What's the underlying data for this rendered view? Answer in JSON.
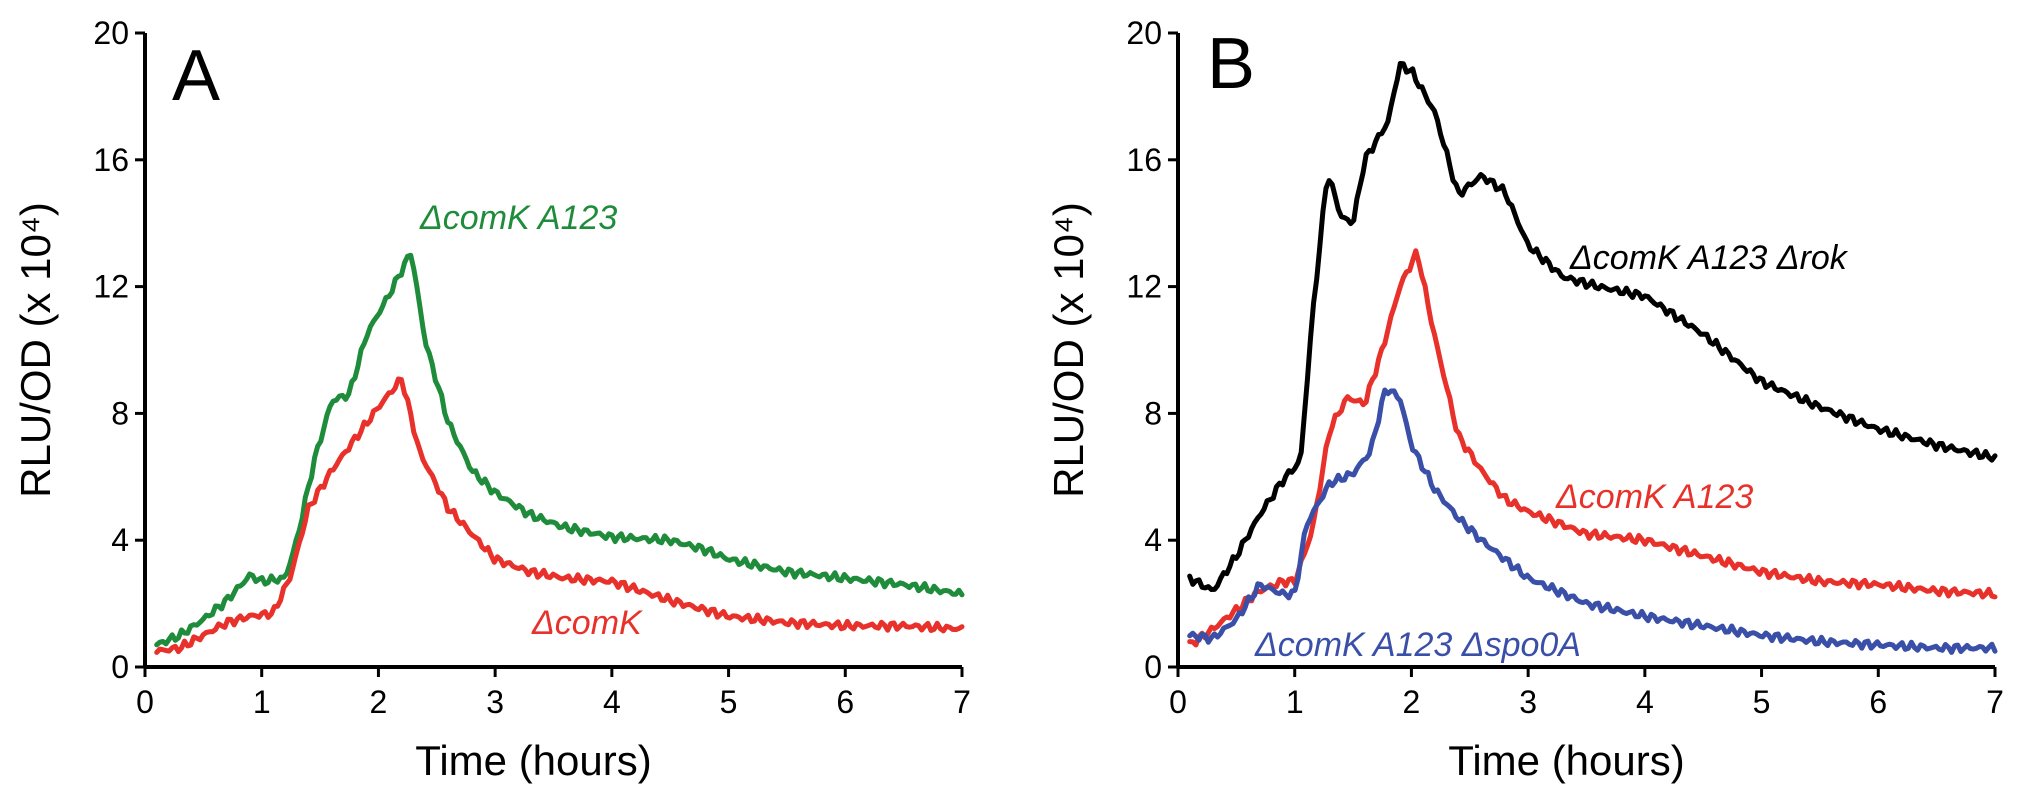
{
  "chart_data": [
    {
      "type": "line",
      "panel_label": "A",
      "xlabel": "Time (hours)",
      "ylabel": "RLU/OD (x 10⁴)",
      "xlim": [
        0,
        7
      ],
      "ylim": [
        0,
        20
      ],
      "xticks": [
        "0",
        "1",
        "2",
        "3",
        "4",
        "5",
        "6",
        "7"
      ],
      "yticks": [
        "0",
        "4",
        "8",
        "12",
        "16",
        "20"
      ],
      "grid": false,
      "legend": "inline",
      "series": [
        {
          "name": "ΔcomK A123",
          "color": "#1e8c3a",
          "x": [
            0.1,
            0.3,
            0.5,
            0.7,
            0.9,
            1.0,
            1.2,
            1.3,
            1.45,
            1.6,
            1.75,
            1.9,
            2.1,
            2.28,
            2.4,
            2.6,
            2.8,
            3.0,
            3.3,
            3.6,
            4.0,
            4.5,
            4.8,
            5.0,
            5.5,
            6.0,
            6.5,
            7.0
          ],
          "values": [
            0.7,
            1.0,
            1.5,
            2.1,
            2.9,
            2.7,
            2.8,
            4.0,
            6.5,
            8.4,
            8.6,
            10.5,
            11.8,
            13.1,
            10.3,
            7.7,
            6.2,
            5.5,
            4.8,
            4.4,
            4.1,
            4.0,
            3.7,
            3.4,
            3.0,
            2.8,
            2.6,
            2.3
          ]
        },
        {
          "name": "ΔcomK",
          "color": "#e8312a",
          "x": [
            0.1,
            0.3,
            0.5,
            0.7,
            0.9,
            1.1,
            1.25,
            1.4,
            1.6,
            1.8,
            2.0,
            2.2,
            2.35,
            2.6,
            2.8,
            3.0,
            3.3,
            3.6,
            4.0,
            4.5,
            5.0,
            5.5,
            6.0,
            6.5,
            7.0
          ],
          "values": [
            0.5,
            0.6,
            1.0,
            1.4,
            1.6,
            1.7,
            2.9,
            5.0,
            6.2,
            7.2,
            8.2,
            9.1,
            6.8,
            5.0,
            4.2,
            3.4,
            3.0,
            2.8,
            2.7,
            2.1,
            1.6,
            1.4,
            1.3,
            1.3,
            1.2
          ]
        }
      ]
    },
    {
      "type": "line",
      "panel_label": "B",
      "xlabel": "Time (hours)",
      "ylabel": "RLU/OD (x 10⁴)",
      "xlim": [
        0,
        7
      ],
      "ylim": [
        0,
        20
      ],
      "xticks": [
        "0",
        "1",
        "2",
        "3",
        "4",
        "5",
        "6",
        "7"
      ],
      "yticks": [
        "0",
        "4",
        "8",
        "12",
        "16",
        "20"
      ],
      "grid": false,
      "legend": "inline",
      "series": [
        {
          "name": "ΔcomK A123 Δrok",
          "color": "#000000",
          "x": [
            0.1,
            0.3,
            0.5,
            0.7,
            0.9,
            1.05,
            1.15,
            1.28,
            1.4,
            1.5,
            1.6,
            1.8,
            1.9,
            2.0,
            2.2,
            2.4,
            2.6,
            2.8,
            3.0,
            3.3,
            3.6,
            4.0,
            4.5,
            5.0,
            5.5,
            6.0,
            6.5,
            7.0
          ],
          "values": [
            2.8,
            2.4,
            3.5,
            4.8,
            5.9,
            6.5,
            11.0,
            15.6,
            14.2,
            14.0,
            16.0,
            17.2,
            19.0,
            18.8,
            17.5,
            14.9,
            15.5,
            15.0,
            13.3,
            12.3,
            12.0,
            11.7,
            10.5,
            9.0,
            8.2,
            7.5,
            7.0,
            6.6
          ]
        },
        {
          "name": "ΔcomK A123",
          "color": "#e8312a",
          "x": [
            0.1,
            0.3,
            0.5,
            0.7,
            0.9,
            1.0,
            1.15,
            1.3,
            1.45,
            1.6,
            1.75,
            1.9,
            2.05,
            2.2,
            2.4,
            2.6,
            2.8,
            3.0,
            3.5,
            4.0,
            4.5,
            5.0,
            5.5,
            6.0,
            6.5,
            7.0
          ],
          "values": [
            0.7,
            1.2,
            1.8,
            2.4,
            2.7,
            2.7,
            4.3,
            7.5,
            8.5,
            8.3,
            10.0,
            12.0,
            13.1,
            10.4,
            7.3,
            6.2,
            5.3,
            4.9,
            4.2,
            4.0,
            3.5,
            3.0,
            2.7,
            2.6,
            2.4,
            2.3
          ]
        },
        {
          "name": "ΔcomK A123 Δspo0A",
          "color": "#3a4fa8",
          "x": [
            0.1,
            0.3,
            0.5,
            0.7,
            0.9,
            1.0,
            1.1,
            1.3,
            1.5,
            1.65,
            1.78,
            1.9,
            2.0,
            2.2,
            2.4,
            2.6,
            2.8,
            3.0,
            3.5,
            4.0,
            4.5,
            5.0,
            5.5,
            6.0,
            6.5,
            7.0
          ],
          "values": [
            1.0,
            0.9,
            1.5,
            2.6,
            2.3,
            2.3,
            4.5,
            5.8,
            6.1,
            6.8,
            8.8,
            8.5,
            7.0,
            5.6,
            4.7,
            4.0,
            3.4,
            2.8,
            2.0,
            1.6,
            1.3,
            1.0,
            0.8,
            0.7,
            0.6,
            0.6
          ]
        }
      ]
    }
  ]
}
